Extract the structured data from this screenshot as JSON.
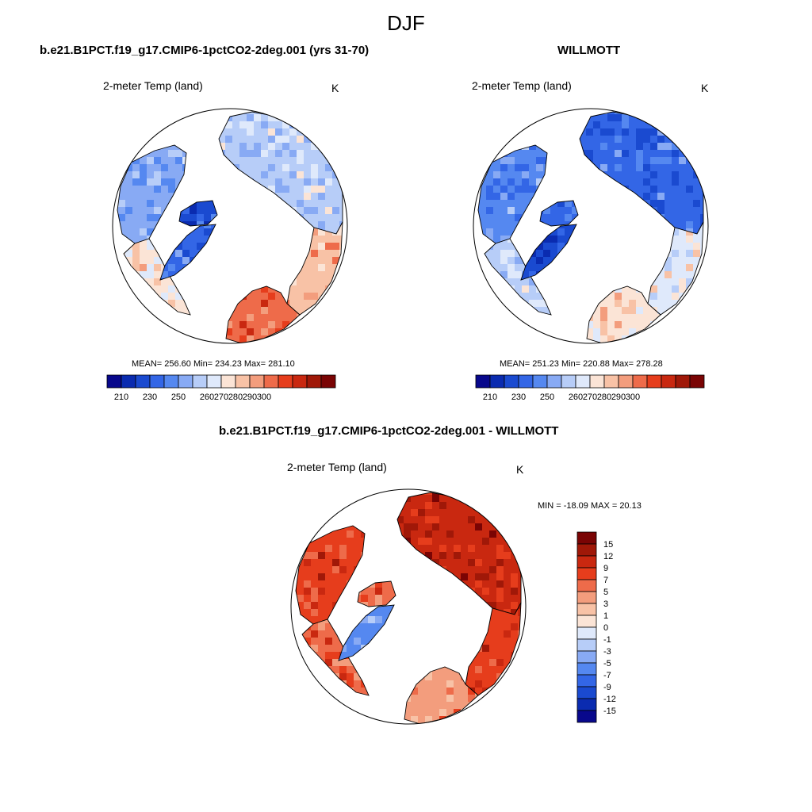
{
  "figure": {
    "title": "DJF"
  },
  "palette_abs": [
    "#08088c",
    "#0a2bb0",
    "#1a4ad0",
    "#3366e6",
    "#5588f0",
    "#88aaf4",
    "#b7cdf8",
    "#dfe9fb",
    "#fbe4d6",
    "#f8c2a6",
    "#f39d7d",
    "#ee6b4a",
    "#e63d1c",
    "#c92810",
    "#a01808",
    "#7a0404"
  ],
  "palette_diff": [
    "#08088c",
    "#0a2bb0",
    "#1a4ad0",
    "#3366e6",
    "#5588f0",
    "#88aaf4",
    "#b7cdf8",
    "#dfe9fb",
    "#fbe4d6",
    "#f8c2a6",
    "#f39d7d",
    "#ee6b4a",
    "#e63d1c",
    "#c92810",
    "#a01808",
    "#7a0404"
  ],
  "panels": [
    {
      "title": "b.e21.B1PCT.f19_g17.CMIP6-1pctCO2-2deg.001 (yrs 31-70)",
      "var_label": "2-meter Temp (land)",
      "units": "K",
      "stats": "MEAN= 256.60  Min= 234.23  Max= 281.10",
      "colorbar_ticks": [
        "210",
        "230",
        "250",
        "260",
        "270",
        "280",
        "290",
        "300"
      ],
      "regions": {
        "asia": 6,
        "asia_south": 9,
        "europe": 11,
        "america": 5,
        "america_south": 8,
        "greenland": 3,
        "caa": 2
      }
    },
    {
      "title": "WILLMOTT",
      "var_label": "2-meter Temp (land)",
      "units": "K",
      "stats": "MEAN= 251.23  Min= 220.88  Max= 278.28",
      "colorbar_ticks": [
        "210",
        "230",
        "250",
        "260",
        "270",
        "280",
        "290",
        "300"
      ],
      "regions": {
        "asia": 3,
        "asia_south": 7,
        "europe": 8,
        "america": 4,
        "america_south": 6,
        "greenland": 2,
        "caa": 3
      }
    }
  ],
  "diff_panel": {
    "title": "b.e21.B1PCT.f19_g17.CMIP6-1pctCO2-2deg.001 - WILLMOTT",
    "var_label": "2-meter Temp (land)",
    "units": "K",
    "stats": "MIN = -18.09 MAX =  20.13",
    "colorbar_ticks": [
      "15",
      "12",
      "9",
      "7",
      "5",
      "3",
      "1",
      "0",
      "-1",
      "-3",
      "-5",
      "-7",
      "-9",
      "-12",
      "-15"
    ],
    "regions": {
      "asia": 13,
      "asia_south": 12,
      "europe": 10,
      "america": 12,
      "america_south": 11,
      "greenland": 4,
      "caa": 11
    }
  }
}
